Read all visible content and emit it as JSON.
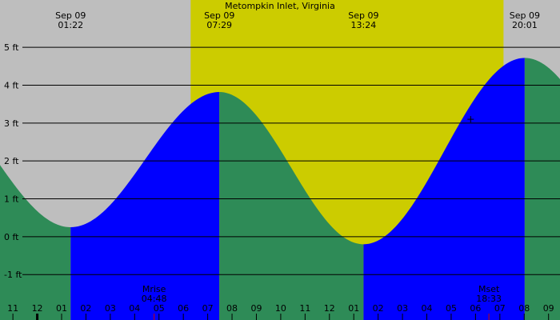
{
  "chart_data": {
    "type": "area",
    "title": "Metompkin Inlet, Virginia",
    "xlabel": "",
    "ylabel": "",
    "x_unit": "hour",
    "x_range": [
      -1.53,
      21.47
    ],
    "ylim": [
      -2.2,
      6.25
    ],
    "y_ticks": [
      {
        "value": 5,
        "label": "5 ft"
      },
      {
        "value": 4,
        "label": "4 ft"
      },
      {
        "value": 3,
        "label": "3 ft"
      },
      {
        "value": 2,
        "label": "2 ft"
      },
      {
        "value": 1,
        "label": "1 ft"
      },
      {
        "value": 0,
        "label": "0 ft"
      },
      {
        "value": -1,
        "label": "-1 ft"
      }
    ],
    "grid": true,
    "daylight": {
      "start": 6.3,
      "end": 19.15
    },
    "tides": [
      {
        "type": "low",
        "date": "Sep 09",
        "time": "01:22",
        "hour": 1.37,
        "height": 0.25
      },
      {
        "type": "high",
        "date": "Sep 09",
        "time": "07:29",
        "hour": 7.48,
        "height": 3.82
      },
      {
        "type": "low",
        "date": "Sep 09",
        "time": "13:24",
        "hour": 13.4,
        "height": -0.2
      },
      {
        "type": "high",
        "date": "Sep 09",
        "time": "20:01",
        "hour": 20.02,
        "height": 4.72
      }
    ],
    "series": [
      {
        "role": "falling tide",
        "color": "#2e8b57"
      },
      {
        "role": "rising tide",
        "color": "#0000ff"
      }
    ],
    "moon": [
      {
        "label": "Mrise",
        "time": "04:48",
        "hour": 4.8
      },
      {
        "label": "Mset",
        "time": "18:33",
        "hour": 18.55
      }
    ],
    "x_ticks": [
      {
        "label": "11",
        "hour": -1
      },
      {
        "label": "12",
        "hour": 0
      },
      {
        "label": "01",
        "hour": 1
      },
      {
        "label": "02",
        "hour": 2
      },
      {
        "label": "03",
        "hour": 3
      },
      {
        "label": "04",
        "hour": 4
      },
      {
        "label": "05",
        "hour": 5
      },
      {
        "label": "06",
        "hour": 6
      },
      {
        "label": "07",
        "hour": 7
      },
      {
        "label": "08",
        "hour": 8
      },
      {
        "label": "09",
        "hour": 9
      },
      {
        "label": "10",
        "hour": 10
      },
      {
        "label": "11",
        "hour": 11
      },
      {
        "label": "12",
        "hour": 12
      },
      {
        "label": "01",
        "hour": 13
      },
      {
        "label": "02",
        "hour": 14
      },
      {
        "label": "03",
        "hour": 15
      },
      {
        "label": "04",
        "hour": 16
      },
      {
        "label": "05",
        "hour": 17
      },
      {
        "label": "06",
        "hour": 18
      },
      {
        "label": "07",
        "hour": 19
      },
      {
        "label": "08",
        "hour": 20
      },
      {
        "label": "09",
        "hour": 21
      }
    ],
    "cursor": {
      "hour": 17.8,
      "height": 3.1
    }
  },
  "colors": {
    "night": "#bebebe",
    "day": "#cccc00",
    "grid": "#000000",
    "moon_tick": "#cc0000"
  }
}
